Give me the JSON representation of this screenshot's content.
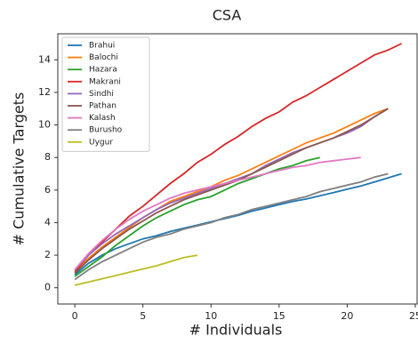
{
  "chart_data": {
    "type": "line",
    "title": "CSA",
    "x_label": "# Individuals",
    "y_label": "# Cumulative Targets",
    "xlim": [
      -1.25,
      25.2
    ],
    "xticks": [
      0,
      5,
      10,
      15,
      20,
      25
    ],
    "ylim": [
      -1,
      15.6
    ],
    "yticks": [
      0,
      2,
      4,
      6,
      8,
      10,
      12,
      14
    ],
    "legend": "upper left",
    "series": [
      {
        "name": "Brahui",
        "color": "#1f77b4",
        "values": [
          0.8,
          1.5,
          2.0,
          2.4,
          2.7,
          3.0,
          3.2,
          3.45,
          3.65,
          3.85,
          4.05,
          4.25,
          4.45,
          4.7,
          4.9,
          5.1,
          5.3,
          5.45,
          5.65,
          5.85,
          6.05,
          6.25,
          6.5,
          6.75,
          7.0
        ]
      },
      {
        "name": "Balochi",
        "color": "#ff7f0e",
        "values": [
          1.0,
          1.8,
          2.5,
          3.1,
          3.7,
          4.3,
          4.8,
          5.3,
          5.6,
          5.9,
          6.2,
          6.6,
          6.9,
          7.3,
          7.7,
          8.1,
          8.5,
          8.9,
          9.2,
          9.5,
          9.9,
          10.3,
          10.7,
          11.0
        ]
      },
      {
        "name": "Hazara",
        "color": "#2ca02c",
        "values": [
          0.7,
          1.3,
          1.9,
          2.6,
          3.2,
          3.8,
          4.3,
          4.7,
          5.1,
          5.4,
          5.6,
          6.0,
          6.4,
          6.7,
          7.0,
          7.3,
          7.5,
          7.8,
          8.0
        ]
      },
      {
        "name": "Makrani",
        "color": "#d62728",
        "values": [
          1.0,
          2.0,
          2.8,
          3.6,
          4.4,
          5.0,
          5.7,
          6.4,
          7.0,
          7.7,
          8.2,
          8.8,
          9.3,
          9.9,
          10.4,
          10.8,
          11.4,
          11.8,
          12.3,
          12.8,
          13.3,
          13.8,
          14.3,
          14.6,
          15.0
        ]
      },
      {
        "name": "Sindhi",
        "color": "#9467bd",
        "values": [
          1.1,
          2.0,
          2.7,
          3.3,
          3.8,
          4.3,
          4.8,
          5.2,
          5.5,
          5.8,
          6.1,
          6.4,
          6.7,
          7.0,
          7.5,
          7.9,
          8.3,
          8.6,
          8.9,
          9.2,
          9.5,
          9.9,
          10.5,
          11.0
        ]
      },
      {
        "name": "Pathan",
        "color": "#8c564b",
        "values": [
          0.9,
          1.7,
          2.4,
          3.0,
          3.6,
          4.1,
          4.6,
          5.0,
          5.4,
          5.7,
          6.0,
          6.3,
          6.6,
          7.0,
          7.4,
          7.8,
          8.2,
          8.6,
          8.9,
          9.2,
          9.6,
          10.0,
          10.5,
          11.0
        ]
      },
      {
        "name": "Kalash",
        "color": "#e377c2",
        "values": [
          1.1,
          2.1,
          2.9,
          3.6,
          4.2,
          4.7,
          5.1,
          5.5,
          5.8,
          6.0,
          6.2,
          6.4,
          6.6,
          6.8,
          7.0,
          7.2,
          7.4,
          7.5,
          7.7,
          7.8,
          7.9,
          8.0
        ]
      },
      {
        "name": "Burusho",
        "color": "#7f7f7f",
        "values": [
          0.5,
          1.1,
          1.6,
          2.0,
          2.4,
          2.8,
          3.1,
          3.3,
          3.6,
          3.8,
          4.0,
          4.3,
          4.5,
          4.8,
          5.0,
          5.2,
          5.4,
          5.6,
          5.9,
          6.1,
          6.3,
          6.5,
          6.8,
          7.0
        ]
      },
      {
        "name": "Uygur",
        "color": "#bcbd22",
        "values": [
          0.15,
          0.35,
          0.55,
          0.75,
          0.95,
          1.15,
          1.35,
          1.6,
          1.85,
          2.0
        ]
      }
    ]
  }
}
